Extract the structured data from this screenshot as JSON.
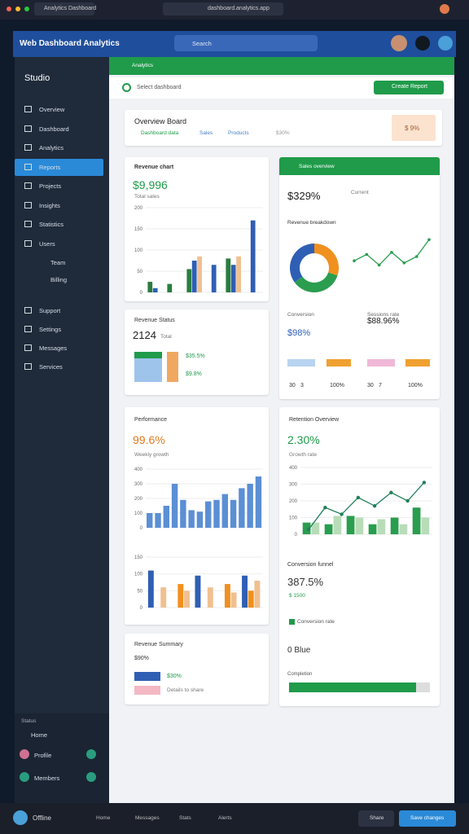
{
  "browser": {
    "tab": "Analytics Dashboard",
    "url": "dashboard.analytics.app"
  },
  "header": {
    "title": "Web Dashboard Analytics",
    "search": "Search"
  },
  "sidebar": {
    "title": "Studio",
    "items": [
      "Overview",
      "Dashboard",
      "Analytics",
      "Reports",
      "Projects",
      "Insights",
      "Statistics",
      "Users"
    ],
    "subitems": [
      "Team",
      "Billing"
    ],
    "items2": [
      "Support",
      "Settings",
      "Messages",
      "Services"
    ],
    "footer": {
      "label": "Status",
      "links": [
        "Home",
        "Profile",
        "Members"
      ]
    }
  },
  "topbar": {
    "label": "Analytics",
    "dropdown": "Select dashboard",
    "button": "Create Report"
  },
  "overview": {
    "title": "Overview Board",
    "tabs": [
      "Dashboard data",
      "Sales",
      "Products",
      "$30%"
    ],
    "badge": "$ 9%"
  },
  "card_a": {
    "title": "Revenue chart",
    "value": "$9,996",
    "sub": "Total sales",
    "chart": {
      "ylim": [
        0,
        200
      ],
      "yticks": [
        0,
        50,
        100,
        150,
        200
      ],
      "series": [
        {
          "color": "#2a7d3f",
          "values": [
            25,
            20,
            55,
            null,
            80,
            null
          ]
        },
        {
          "color": "#2f5fb4",
          "values": [
            10,
            null,
            75,
            65,
            65,
            170
          ]
        },
        {
          "color": "#f0c090",
          "values": [
            null,
            null,
            85,
            null,
            85,
            null
          ]
        }
      ]
    }
  },
  "card_b": {
    "title": "Sales overview",
    "value": "$329%",
    "sub": "Current",
    "subtitle": "Revenue breakdown",
    "donut": {
      "values": [
        30,
        35,
        35
      ],
      "colors": [
        "#f0901e",
        "#2a9d4f",
        "#2f5fb4"
      ]
    },
    "spark": {
      "ylim": [
        0,
        100
      ],
      "values": [
        40,
        55,
        30,
        60,
        35,
        50,
        90
      ],
      "color": "#2a9d4f"
    },
    "stats": [
      {
        "label": "Conversion",
        "value": "$98%"
      },
      {
        "label": "Sessions rate",
        "value": "$88.96%"
      }
    ],
    "foot": [
      "30",
      "3",
      "100%",
      "30",
      "7",
      "100%"
    ]
  },
  "card_c": {
    "title": "Revenue Status",
    "value": "2124",
    "sub": "Total",
    "legend": [
      "$35.5%",
      "$9.8%"
    ]
  },
  "card_d": {
    "title": "Performance",
    "value": "99.6%",
    "sub": "Weekly growth",
    "chart": {
      "ylim": [
        0,
        400
      ],
      "yticks": [
        0,
        100,
        200,
        300,
        400
      ],
      "series": [
        {
          "color": "#5b8fd4",
          "values": [
            100,
            100,
            150,
            300,
            190,
            120,
            110,
            180,
            190,
            230,
            190,
            270,
            300,
            350
          ]
        }
      ]
    },
    "chart2": {
      "ylim": [
        0,
        150
      ],
      "yticks": [
        0,
        50,
        100,
        150
      ],
      "series": [
        {
          "color": "#2f5fb4",
          "values": [
            110,
            null,
            95,
            null,
            95
          ]
        },
        {
          "color": "#f0901e",
          "values": [
            null,
            70,
            null,
            70,
            50
          ]
        },
        {
          "color": "#f0c090",
          "values": [
            60,
            50,
            60,
            45,
            80
          ]
        }
      ]
    }
  },
  "card_e": {
    "title": "Retention Overview",
    "value": "2.30%",
    "sub": "Growth rate",
    "chart": {
      "ylim": [
        0,
        400
      ],
      "yticks": [
        0,
        100,
        200,
        300,
        400
      ],
      "series": [
        {
          "color": "#2a9d4f",
          "values": [
            70,
            60,
            110,
            60,
            100,
            160
          ]
        },
        {
          "color": "#b8dcb8",
          "values": [
            70,
            110,
            100,
            90,
            60,
            100
          ]
        }
      ],
      "line": {
        "color": "#1f7f5a",
        "values": [
          30,
          160,
          120,
          220,
          170,
          250,
          200,
          310
        ]
      }
    },
    "stat": "Conversion funnel",
    "stat_value": "387.5%",
    "stat_sub": "$ 1500",
    "legend": "Conversion rate",
    "blue": "0 Blue",
    "progress_label": "Completion",
    "progress": {
      "value": 90,
      "max": 100
    }
  },
  "card_f": {
    "title": "Revenue Summary",
    "value": "$90%",
    "legend": [
      "$30%",
      "Details to share"
    ]
  },
  "bottom": {
    "user": "Offline",
    "items": [
      "Home",
      "Messages",
      "Stats",
      "Alerts"
    ],
    "buttons": [
      "Share",
      "Save changes"
    ]
  }
}
